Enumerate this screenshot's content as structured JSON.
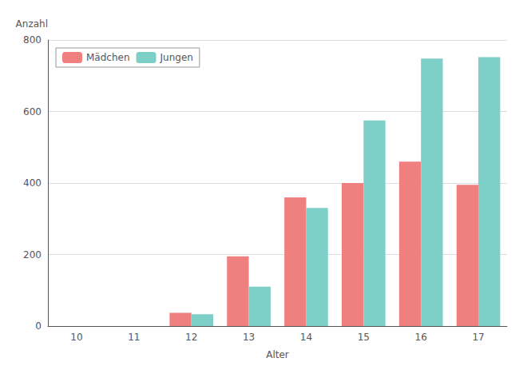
{
  "chart_data": {
    "type": "bar",
    "xlabel": "Alter",
    "ylabel": "Anzahl",
    "categories": [
      "10",
      "11",
      "12",
      "13",
      "14",
      "15",
      "16",
      "17"
    ],
    "series": [
      {
        "name": "Mädchen",
        "color": "#F08080",
        "values": [
          0,
          0,
          37,
          195,
          360,
          400,
          460,
          395
        ]
      },
      {
        "name": "Jungen",
        "color": "#7ECFC8",
        "values": [
          0,
          0,
          33,
          110,
          330,
          575,
          748,
          752
        ]
      }
    ],
    "ylim": [
      0,
      800
    ],
    "yticks": [
      0,
      200,
      400,
      600,
      800
    ],
    "grid": true,
    "legend": "upper left"
  }
}
